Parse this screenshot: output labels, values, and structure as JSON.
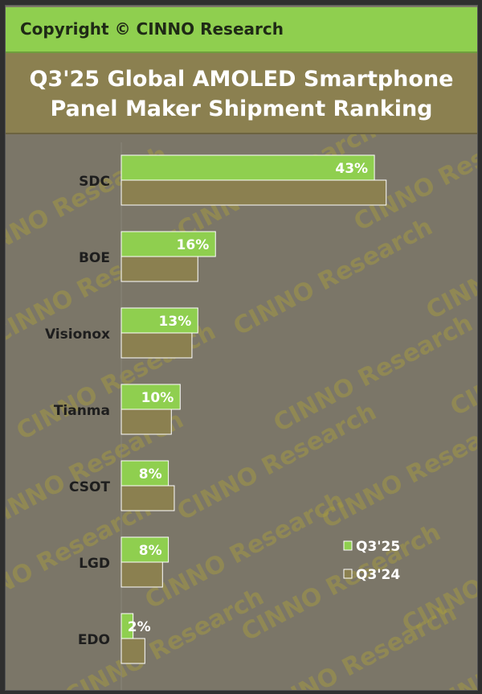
{
  "copyright": "Copyright © CINNO Research",
  "watermark": "CINNO Research",
  "chart_data": {
    "type": "bar",
    "orientation": "horizontal",
    "title": "Q3'25 Global AMOLED Smartphone Panel Maker Shipment Ranking",
    "title_lines": [
      "Q3'25 Global AMOLED Smartphone",
      "Panel Maker Shipment Ranking"
    ],
    "categories": [
      "SDC",
      "BOE",
      "Visionox",
      "Tianma",
      "CSOT",
      "LGD",
      "EDO"
    ],
    "series": [
      {
        "name": "Q3'25",
        "color": "#8fcf4f",
        "values": [
          43,
          16,
          13,
          10,
          8,
          8,
          2
        ],
        "labels": [
          "43%",
          "16%",
          "13%",
          "10%",
          "8%",
          "8%",
          "2%"
        ]
      },
      {
        "name": "Q3'24",
        "color": "#8b8050",
        "values": [
          45,
          13,
          12,
          8.5,
          9,
          7,
          4
        ]
      }
    ],
    "xlim": [
      0,
      55
    ],
    "grid": false,
    "legend": "right",
    "xlabel": "",
    "ylabel": ""
  }
}
